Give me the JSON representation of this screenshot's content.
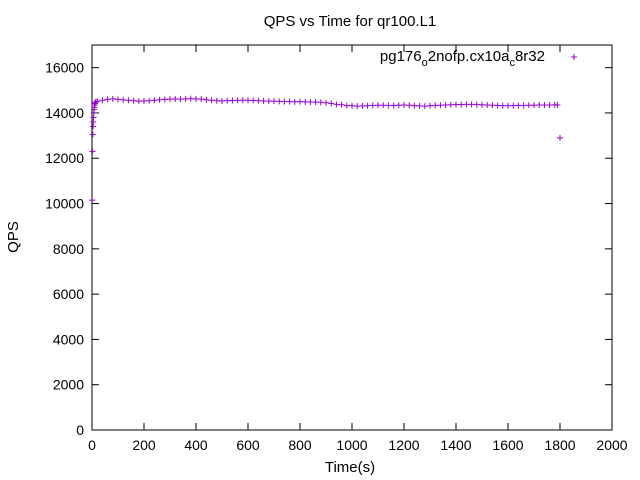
{
  "chart_data": {
    "type": "scatter",
    "title": "QPS vs Time for qr100.L1",
    "xlabel": "Time(s)",
    "ylabel": "QPS",
    "xlim": [
      0,
      2000
    ],
    "ylim": [
      0,
      17000
    ],
    "x_ticks": [
      0,
      200,
      400,
      600,
      800,
      1000,
      1200,
      1400,
      1600,
      1800,
      2000
    ],
    "y_ticks": [
      0,
      2000,
      4000,
      6000,
      8000,
      10000,
      12000,
      14000,
      16000
    ],
    "grid": false,
    "legend_position": "top-right",
    "marker": "+",
    "series": [
      {
        "name": "pg176_o2nofp.cx10a_c8r32",
        "name_parts": {
          "part1": "pg176",
          "sub1": "o",
          "part2": "2nofp.cx10a",
          "sub2": "c",
          "part3": "8r32"
        },
        "color": "#9400d3",
        "points": [
          [
            1,
            10150
          ],
          [
            2,
            12300
          ],
          [
            3,
            13050
          ],
          [
            4,
            13400
          ],
          [
            5,
            13600
          ],
          [
            6,
            13800
          ],
          [
            7,
            14000
          ],
          [
            8,
            14150
          ],
          [
            9,
            14250
          ],
          [
            10,
            14350
          ],
          [
            12,
            14420
          ],
          [
            14,
            14480
          ],
          [
            20,
            14520
          ],
          [
            40,
            14560
          ],
          [
            60,
            14600
          ],
          [
            80,
            14620
          ],
          [
            100,
            14600
          ],
          [
            120,
            14580
          ],
          [
            140,
            14560
          ],
          [
            160,
            14540
          ],
          [
            180,
            14520
          ],
          [
            200,
            14530
          ],
          [
            220,
            14540
          ],
          [
            240,
            14560
          ],
          [
            260,
            14580
          ],
          [
            280,
            14600
          ],
          [
            300,
            14610
          ],
          [
            320,
            14620
          ],
          [
            340,
            14610
          ],
          [
            360,
            14620
          ],
          [
            380,
            14630
          ],
          [
            400,
            14620
          ],
          [
            420,
            14610
          ],
          [
            440,
            14580
          ],
          [
            460,
            14560
          ],
          [
            480,
            14540
          ],
          [
            500,
            14530
          ],
          [
            520,
            14540
          ],
          [
            540,
            14550
          ],
          [
            560,
            14560
          ],
          [
            580,
            14560
          ],
          [
            600,
            14560
          ],
          [
            620,
            14550
          ],
          [
            640,
            14540
          ],
          [
            660,
            14530
          ],
          [
            680,
            14520
          ],
          [
            700,
            14520
          ],
          [
            720,
            14510
          ],
          [
            740,
            14500
          ],
          [
            760,
            14500
          ],
          [
            780,
            14490
          ],
          [
            800,
            14500
          ],
          [
            820,
            14490
          ],
          [
            840,
            14480
          ],
          [
            860,
            14480
          ],
          [
            880,
            14470
          ],
          [
            900,
            14450
          ],
          [
            920,
            14420
          ],
          [
            940,
            14380
          ],
          [
            960,
            14360
          ],
          [
            980,
            14320
          ],
          [
            1000,
            14320
          ],
          [
            1020,
            14300
          ],
          [
            1040,
            14310
          ],
          [
            1060,
            14320
          ],
          [
            1080,
            14330
          ],
          [
            1100,
            14340
          ],
          [
            1120,
            14340
          ],
          [
            1140,
            14330
          ],
          [
            1160,
            14330
          ],
          [
            1180,
            14340
          ],
          [
            1200,
            14350
          ],
          [
            1220,
            14340
          ],
          [
            1240,
            14320
          ],
          [
            1260,
            14310
          ],
          [
            1280,
            14300
          ],
          [
            1300,
            14320
          ],
          [
            1320,
            14330
          ],
          [
            1340,
            14340
          ],
          [
            1360,
            14350
          ],
          [
            1380,
            14360
          ],
          [
            1400,
            14370
          ],
          [
            1420,
            14370
          ],
          [
            1440,
            14380
          ],
          [
            1460,
            14380
          ],
          [
            1480,
            14370
          ],
          [
            1500,
            14360
          ],
          [
            1520,
            14350
          ],
          [
            1540,
            14340
          ],
          [
            1560,
            14330
          ],
          [
            1580,
            14320
          ],
          [
            1600,
            14320
          ],
          [
            1620,
            14320
          ],
          [
            1640,
            14330
          ],
          [
            1660,
            14330
          ],
          [
            1680,
            14340
          ],
          [
            1700,
            14340
          ],
          [
            1720,
            14350
          ],
          [
            1740,
            14350
          ],
          [
            1760,
            14350
          ],
          [
            1780,
            14360
          ],
          [
            1790,
            14350
          ],
          [
            1800,
            12900
          ]
        ]
      }
    ]
  }
}
